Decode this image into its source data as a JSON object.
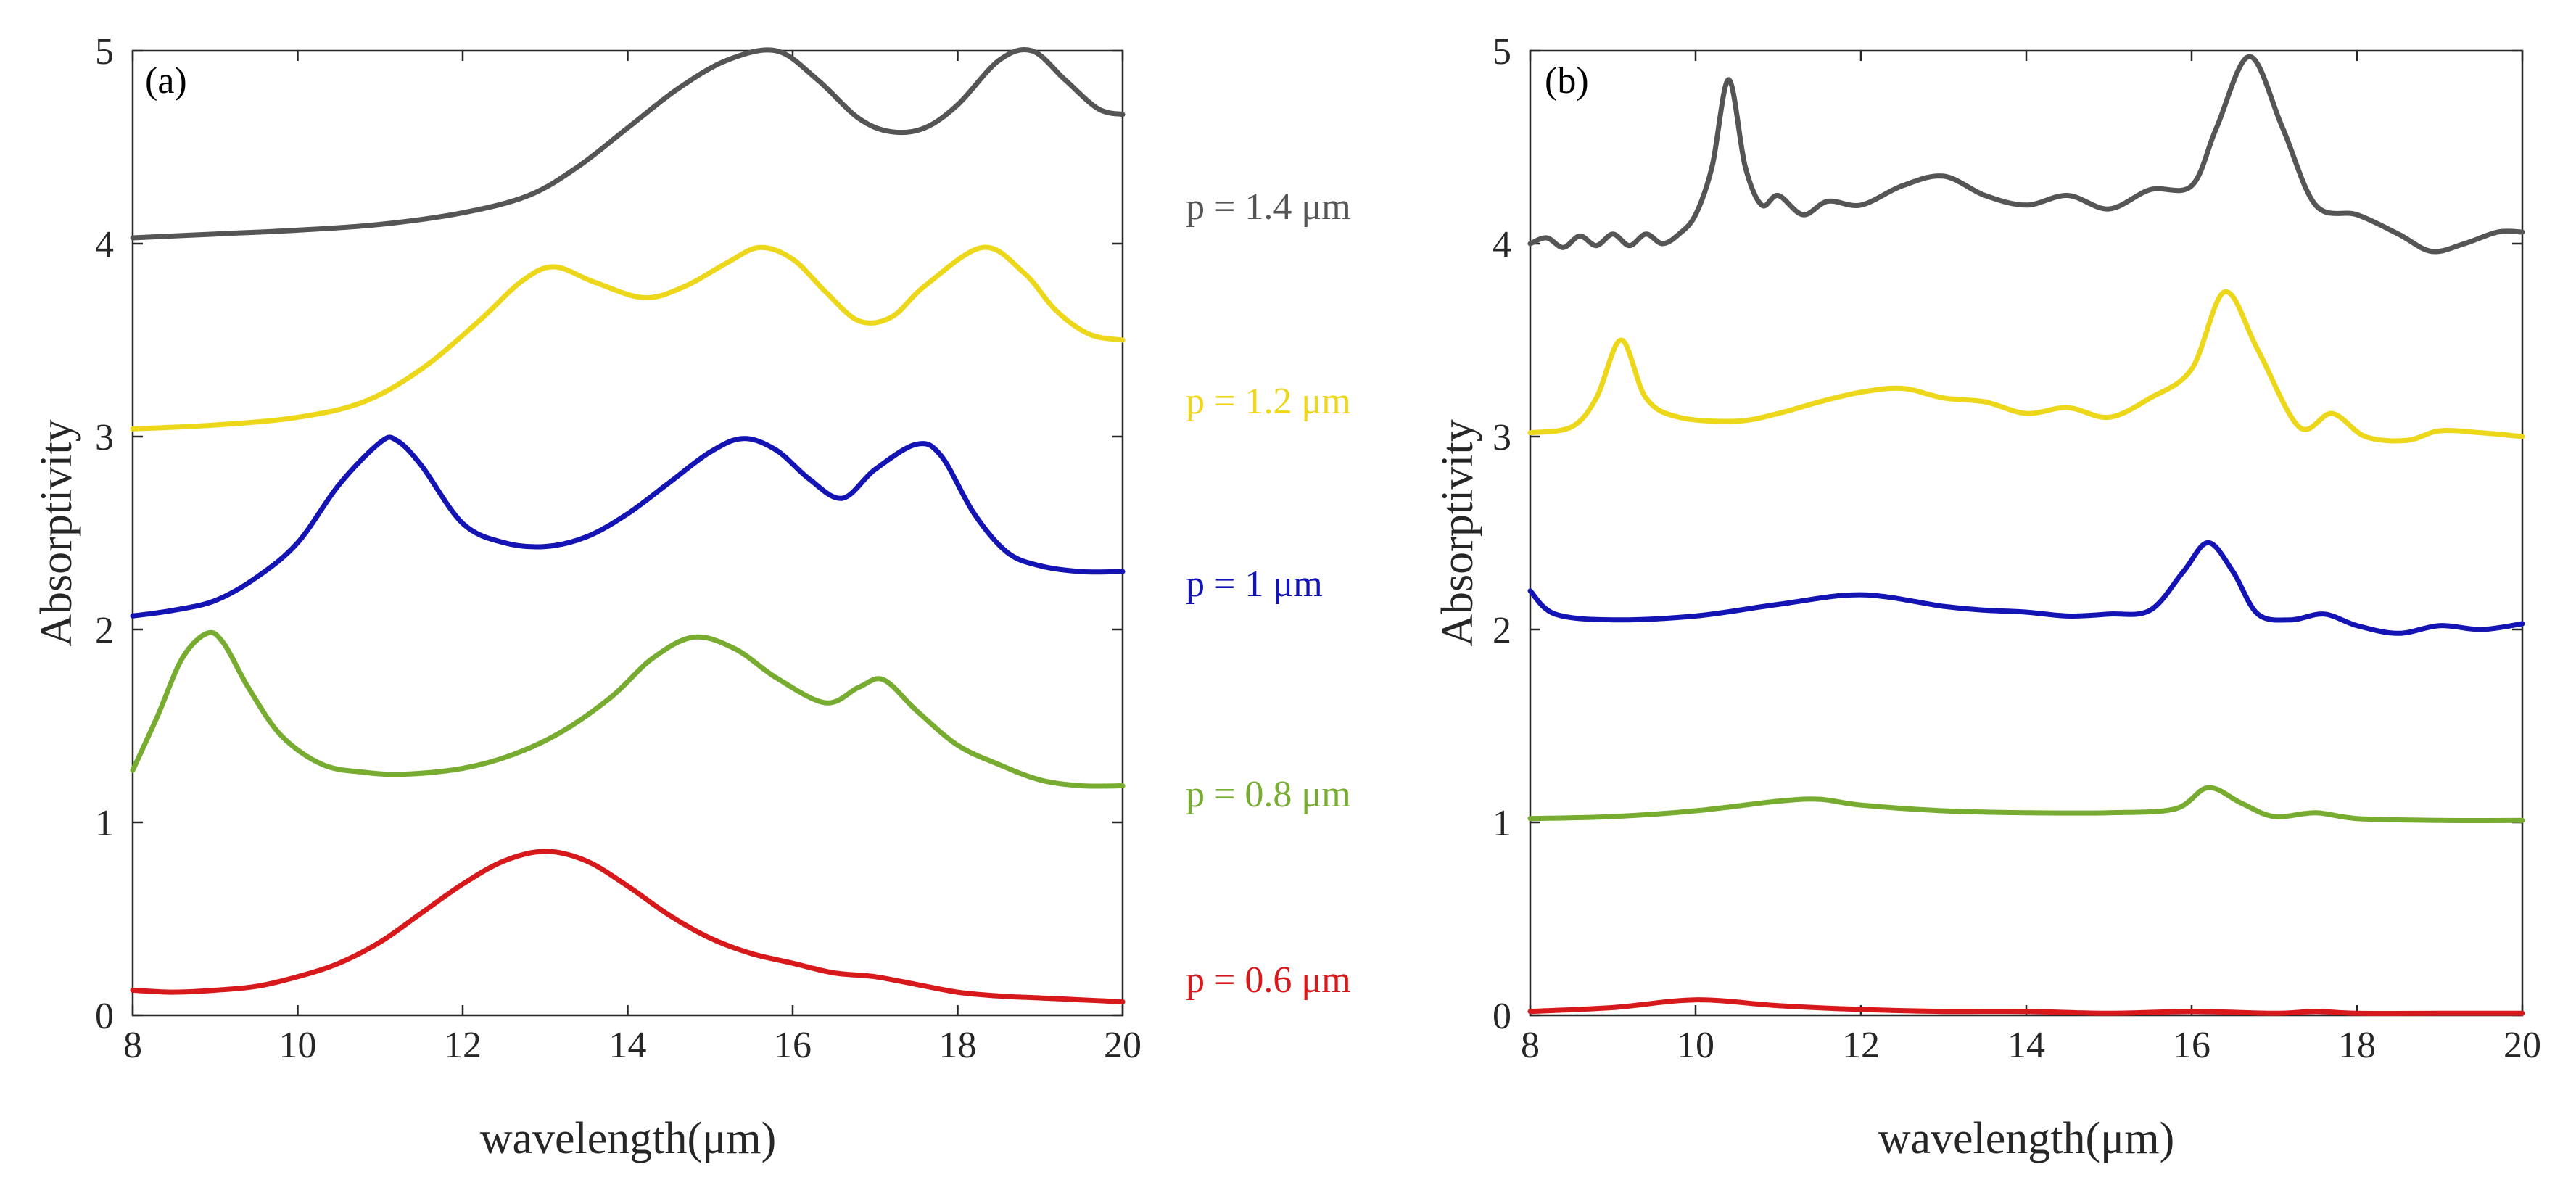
{
  "chart_data": [
    {
      "type": "line",
      "panel_label": "(a)",
      "xlabel": "wavelength(μm)",
      "ylabel": "Absorptivity",
      "xlim": [
        8,
        20
      ],
      "ylim": [
        0,
        5
      ],
      "xticks": [
        "8",
        "10",
        "12",
        "14",
        "16",
        "18",
        "20"
      ],
      "yticks": [
        "0",
        "1",
        "2",
        "3",
        "4",
        "5"
      ],
      "series": [
        {
          "name": "p = 0.6 μm",
          "color": "#d7191c",
          "x": [
            8,
            8.5,
            9,
            9.5,
            10,
            10.5,
            11,
            11.5,
            12,
            12.5,
            13,
            13.5,
            14,
            14.5,
            15,
            15.5,
            16,
            16.5,
            17,
            17.5,
            18,
            18.5,
            19,
            19.5,
            20
          ],
          "y": [
            0.13,
            0.12,
            0.13,
            0.15,
            0.2,
            0.27,
            0.38,
            0.53,
            0.68,
            0.8,
            0.85,
            0.8,
            0.67,
            0.52,
            0.4,
            0.32,
            0.27,
            0.22,
            0.2,
            0.16,
            0.12,
            0.1,
            0.09,
            0.08,
            0.07
          ]
        },
        {
          "name": "p = 0.8 μm",
          "color": "#77ac30",
          "x": [
            8,
            8.3,
            8.6,
            8.9,
            9.1,
            9.4,
            9.8,
            10.3,
            10.8,
            11.3,
            12,
            12.6,
            13.2,
            13.8,
            14.3,
            14.8,
            15.3,
            15.8,
            16.4,
            16.8,
            17.1,
            17.5,
            18,
            18.5,
            19,
            19.5,
            20
          ],
          "y": [
            1.27,
            1.55,
            1.85,
            1.98,
            1.93,
            1.7,
            1.45,
            1.3,
            1.26,
            1.25,
            1.28,
            1.35,
            1.47,
            1.65,
            1.85,
            1.96,
            1.9,
            1.75,
            1.62,
            1.7,
            1.74,
            1.58,
            1.4,
            1.3,
            1.22,
            1.19,
            1.19
          ]
        },
        {
          "name": "p = 1 μm",
          "color": "#1414b4",
          "x": [
            8,
            8.5,
            9,
            9.5,
            10,
            10.5,
            11,
            11.2,
            11.5,
            12,
            12.5,
            13,
            13.5,
            14,
            14.5,
            15,
            15.4,
            15.8,
            16.2,
            16.6,
            17,
            17.5,
            17.8,
            18.2,
            18.6,
            19,
            19.5,
            20
          ],
          "y": [
            2.07,
            2.1,
            2.15,
            2.27,
            2.45,
            2.75,
            2.97,
            2.98,
            2.85,
            2.55,
            2.45,
            2.43,
            2.48,
            2.6,
            2.76,
            2.92,
            2.99,
            2.93,
            2.78,
            2.68,
            2.83,
            2.96,
            2.9,
            2.6,
            2.4,
            2.33,
            2.3,
            2.3
          ]
        },
        {
          "name": "p = 1.2 μm",
          "color": "#edd71a",
          "x": [
            8,
            9,
            10,
            10.8,
            11.5,
            12.2,
            12.7,
            13.1,
            13.6,
            14.2,
            14.7,
            15.2,
            15.6,
            16,
            16.4,
            16.8,
            17.2,
            17.6,
            18.3,
            18.8,
            19.2,
            19.6,
            20
          ],
          "y": [
            3.04,
            3.06,
            3.1,
            3.18,
            3.35,
            3.6,
            3.8,
            3.88,
            3.8,
            3.72,
            3.78,
            3.9,
            3.98,
            3.92,
            3.75,
            3.6,
            3.62,
            3.78,
            3.98,
            3.85,
            3.65,
            3.53,
            3.5
          ]
        },
        {
          "name": "p = 1.4 μm",
          "color": "#555555",
          "x": [
            8,
            9,
            10,
            11,
            12,
            12.8,
            13.4,
            14,
            14.6,
            15.2,
            15.8,
            16.3,
            16.8,
            17.2,
            17.6,
            18,
            18.5,
            18.9,
            19.3,
            19.7,
            20
          ],
          "y": [
            4.03,
            4.05,
            4.07,
            4.1,
            4.16,
            4.25,
            4.4,
            4.6,
            4.8,
            4.95,
            5.0,
            4.85,
            4.65,
            4.58,
            4.6,
            4.72,
            4.95,
            5.0,
            4.85,
            4.7,
            4.67
          ]
        }
      ]
    },
    {
      "type": "line",
      "panel_label": "(b)",
      "xlabel": "wavelength(μm)",
      "ylabel": "Absorptivity",
      "xlim": [
        8,
        20
      ],
      "ylim": [
        0,
        5
      ],
      "xticks": [
        "8",
        "10",
        "12",
        "14",
        "16",
        "18",
        "20"
      ],
      "yticks": [
        "0",
        "1",
        "2",
        "3",
        "4",
        "5"
      ],
      "series": [
        {
          "name": "p = 0.6 μm",
          "color": "#d7191c",
          "x": [
            8,
            9,
            10,
            11,
            12,
            13,
            14,
            15,
            16,
            17,
            17.5,
            18,
            19,
            20
          ],
          "y": [
            0.02,
            0.04,
            0.08,
            0.05,
            0.03,
            0.02,
            0.02,
            0.01,
            0.02,
            0.01,
            0.02,
            0.01,
            0.01,
            0.01
          ]
        },
        {
          "name": "p = 0.8 μm",
          "color": "#77ac30",
          "x": [
            8,
            9,
            10,
            11,
            11.5,
            12,
            13,
            14,
            15,
            15.8,
            16.2,
            16.6,
            17,
            17.5,
            18,
            19,
            20
          ],
          "y": [
            1.02,
            1.03,
            1.06,
            1.11,
            1.12,
            1.09,
            1.06,
            1.05,
            1.05,
            1.07,
            1.18,
            1.1,
            1.03,
            1.05,
            1.02,
            1.01,
            1.01
          ]
        },
        {
          "name": "p = 1 μm",
          "color": "#1414b4",
          "x": [
            8,
            8.3,
            9,
            10,
            11,
            12,
            13,
            13.5,
            14,
            14.5,
            15,
            15.5,
            15.9,
            16.2,
            16.5,
            16.8,
            17.2,
            17.6,
            18,
            18.5,
            19,
            19.5,
            20
          ],
          "y": [
            2.2,
            2.08,
            2.05,
            2.07,
            2.13,
            2.18,
            2.12,
            2.1,
            2.09,
            2.07,
            2.08,
            2.1,
            2.3,
            2.45,
            2.3,
            2.08,
            2.05,
            2.08,
            2.02,
            1.98,
            2.02,
            2.0,
            2.03
          ]
        },
        {
          "name": "p = 1.2 μm",
          "color": "#edd71a",
          "x": [
            8,
            8.5,
            8.8,
            9.1,
            9.4,
            9.8,
            10.5,
            11,
            11.5,
            12,
            12.5,
            13,
            13.5,
            14,
            14.5,
            15,
            15.5,
            16,
            16.4,
            16.8,
            17.3,
            17.7,
            18.1,
            18.6,
            19,
            19.5,
            20
          ],
          "y": [
            3.02,
            3.05,
            3.2,
            3.5,
            3.2,
            3.1,
            3.08,
            3.12,
            3.18,
            3.23,
            3.25,
            3.2,
            3.18,
            3.12,
            3.15,
            3.1,
            3.2,
            3.35,
            3.75,
            3.45,
            3.05,
            3.12,
            3.0,
            2.98,
            3.03,
            3.02,
            3.0
          ]
        },
        {
          "name": "p = 1.4 μm",
          "color": "#555555",
          "x": [
            8,
            8.2,
            8.4,
            8.6,
            8.8,
            9,
            9.2,
            9.4,
            9.6,
            9.8,
            10,
            10.2,
            10.4,
            10.6,
            10.8,
            11,
            11.3,
            11.6,
            12,
            12.5,
            13,
            13.5,
            14,
            14.5,
            15,
            15.5,
            16,
            16.3,
            16.7,
            17.1,
            17.5,
            18,
            18.5,
            18.9,
            19.3,
            19.7,
            20
          ],
          "y": [
            4.0,
            4.03,
            3.98,
            4.04,
            3.99,
            4.05,
            3.99,
            4.05,
            4.0,
            4.05,
            4.15,
            4.4,
            4.85,
            4.4,
            4.2,
            4.25,
            4.15,
            4.22,
            4.2,
            4.3,
            4.35,
            4.25,
            4.2,
            4.25,
            4.18,
            4.28,
            4.3,
            4.6,
            4.97,
            4.6,
            4.2,
            4.15,
            4.05,
            3.96,
            4.0,
            4.06,
            4.06
          ]
        }
      ]
    }
  ]
}
